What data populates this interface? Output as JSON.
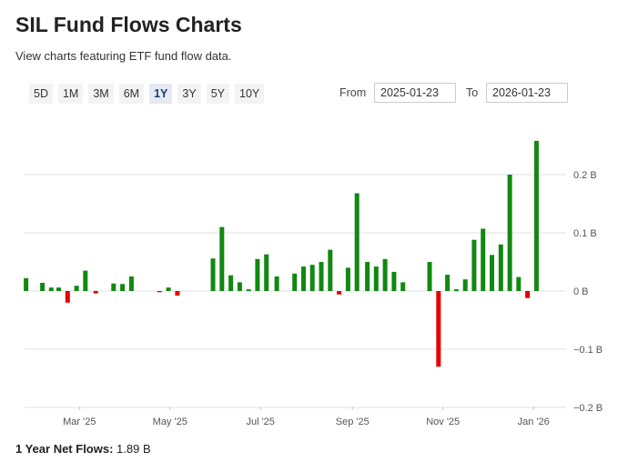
{
  "page": {
    "title": "SIL Fund Flows Charts",
    "subtitle": "View charts featuring ETF fund flow data."
  },
  "range_buttons": [
    "5D",
    "1M",
    "3M",
    "6M",
    "1Y",
    "3Y",
    "5Y",
    "10Y"
  ],
  "active_range": "1Y",
  "date_range": {
    "from_label": "From",
    "from_value": "2025-01-23",
    "to_label": "To",
    "to_value": "2026-01-23"
  },
  "footer": {
    "label": "1 Year Net Flows:",
    "value": "1.89 B"
  },
  "colors": {
    "positive": "#118811",
    "negative": "#e60000",
    "grid": "#e2e2e2"
  },
  "chart_data": {
    "type": "bar",
    "unit": "B",
    "ylim": [
      -0.2,
      0.26
    ],
    "yticks": [
      {
        "value": 0.2,
        "label": "0.2 B"
      },
      {
        "value": 0.1,
        "label": "0.1 B"
      },
      {
        "value": 0,
        "label": "0 B"
      },
      {
        "value": -0.1,
        "label": "−0.1 B"
      },
      {
        "value": -0.2,
        "label": "−0.2 B"
      }
    ],
    "xlim": [
      "2025-01-23",
      "2026-01-23"
    ],
    "xticks": [
      {
        "date": "2025-03-01",
        "label": "Mar '25"
      },
      {
        "date": "2025-05-01",
        "label": "May '25"
      },
      {
        "date": "2025-07-01",
        "label": "Jul '25"
      },
      {
        "date": "2025-09-01",
        "label": "Sep '25"
      },
      {
        "date": "2025-11-01",
        "label": "Nov '25"
      },
      {
        "date": "2026-01-01",
        "label": "Jan '26"
      }
    ],
    "points": [
      {
        "x": "2025-01-24",
        "y": 0.022
      },
      {
        "x": "2025-02-04",
        "y": 0.014
      },
      {
        "x": "2025-02-10",
        "y": 0.006
      },
      {
        "x": "2025-02-15",
        "y": 0.006
      },
      {
        "x": "2025-02-21",
        "y": -0.02
      },
      {
        "x": "2025-02-27",
        "y": 0.009
      },
      {
        "x": "2025-03-05",
        "y": 0.035
      },
      {
        "x": "2025-03-12",
        "y": -0.004
      },
      {
        "x": "2025-03-24",
        "y": 0.013
      },
      {
        "x": "2025-03-30",
        "y": 0.012
      },
      {
        "x": "2025-04-05",
        "y": 0.025
      },
      {
        "x": "2025-04-24",
        "y": -0.002
      },
      {
        "x": "2025-04-30",
        "y": 0.006
      },
      {
        "x": "2025-05-06",
        "y": -0.008
      },
      {
        "x": "2025-05-30",
        "y": 0.056
      },
      {
        "x": "2025-06-05",
        "y": 0.11
      },
      {
        "x": "2025-06-11",
        "y": 0.027
      },
      {
        "x": "2025-06-17",
        "y": 0.015
      },
      {
        "x": "2025-06-23",
        "y": 0.003
      },
      {
        "x": "2025-06-29",
        "y": 0.055
      },
      {
        "x": "2025-07-05",
        "y": 0.063
      },
      {
        "x": "2025-07-12",
        "y": 0.025
      },
      {
        "x": "2025-07-24",
        "y": 0.03
      },
      {
        "x": "2025-07-30",
        "y": 0.042
      },
      {
        "x": "2025-08-05",
        "y": 0.045
      },
      {
        "x": "2025-08-11",
        "y": 0.05
      },
      {
        "x": "2025-08-17",
        "y": 0.071
      },
      {
        "x": "2025-08-23",
        "y": -0.006
      },
      {
        "x": "2025-08-29",
        "y": 0.04
      },
      {
        "x": "2025-09-04",
        "y": 0.168
      },
      {
        "x": "2025-09-11",
        "y": 0.05
      },
      {
        "x": "2025-09-17",
        "y": 0.042
      },
      {
        "x": "2025-09-23",
        "y": 0.055
      },
      {
        "x": "2025-09-29",
        "y": 0.033
      },
      {
        "x": "2025-10-05",
        "y": 0.015
      },
      {
        "x": "2025-10-23",
        "y": 0.05
      },
      {
        "x": "2025-10-29",
        "y": -0.13
      },
      {
        "x": "2025-11-04",
        "y": 0.028
      },
      {
        "x": "2025-11-10",
        "y": 0.003
      },
      {
        "x": "2025-11-16",
        "y": 0.02
      },
      {
        "x": "2025-11-22",
        "y": 0.088
      },
      {
        "x": "2025-11-28",
        "y": 0.107
      },
      {
        "x": "2025-12-04",
        "y": 0.062
      },
      {
        "x": "2025-12-10",
        "y": 0.08
      },
      {
        "x": "2025-12-16",
        "y": 0.2
      },
      {
        "x": "2025-12-22",
        "y": 0.024
      },
      {
        "x": "2025-12-28",
        "y": -0.012
      },
      {
        "x": "2026-01-03",
        "y": 0.258
      }
    ]
  }
}
